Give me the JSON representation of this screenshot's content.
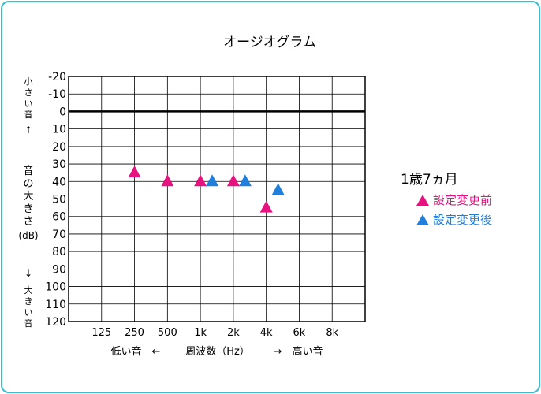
{
  "chart_data": {
    "type": "scatter",
    "title": "オージオグラム",
    "xlabel_left": "低い音　←",
    "xlabel": "周波数（Hz）",
    "xlabel_right": "→　高い音",
    "x_ticks": [
      "125",
      "250",
      "500",
      "1k",
      "2k",
      "4k",
      "6k",
      "8k"
    ],
    "y_ticks": [
      "-20",
      "-10",
      "0",
      "10",
      "20",
      "30",
      "40",
      "50",
      "60",
      "70",
      "80",
      "90",
      "100",
      "110",
      "120"
    ],
    "ylim": [
      -20,
      120
    ],
    "y_inverted": true,
    "grid": true,
    "ylabel_top": "小さい音",
    "ylabel_up_arrow": "↑",
    "ylabel_mid": "音の大きさ",
    "ylabel_unit": "(dB)",
    "ylabel_down_arrow": "↓",
    "ylabel_bottom": "大きい音",
    "legend_title": "1歳7ヵ月",
    "series": [
      {
        "name": "設定変更前",
        "color": "#e6127f",
        "points": [
          {
            "x": "250",
            "y": 35
          },
          {
            "x": "500",
            "y": 40
          },
          {
            "x": "1k",
            "y": 40
          },
          {
            "x": "2k",
            "y": 40
          },
          {
            "x": "4k",
            "y": 55
          }
        ]
      },
      {
        "name": "設定変更後",
        "color": "#1f7fdb",
        "points": [
          {
            "x": "1k",
            "y": 40
          },
          {
            "x": "2k",
            "y": 40
          },
          {
            "x": "4k",
            "y": 45
          }
        ]
      }
    ]
  }
}
